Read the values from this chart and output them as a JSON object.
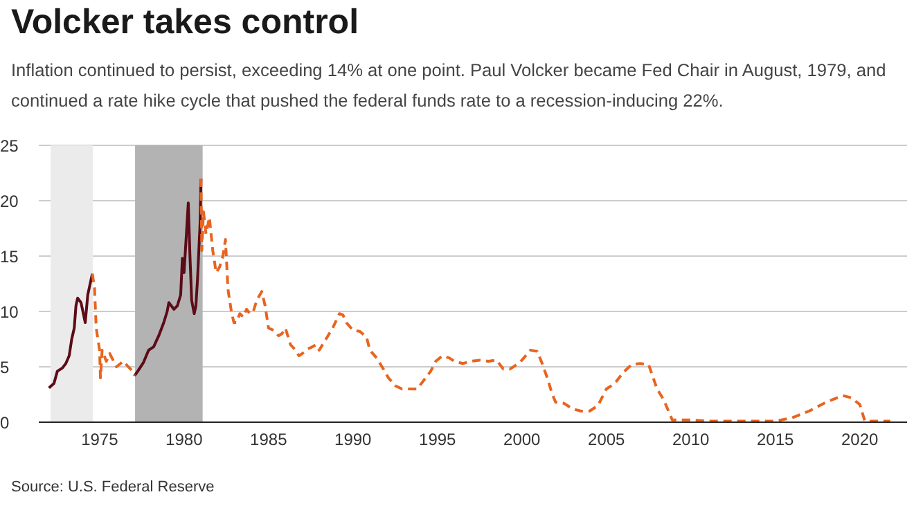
{
  "chart_data": {
    "type": "line",
    "title": "Volcker takes control",
    "subtitle": "Inflation continued to persist, exceeding 14% at one point. Paul Volcker became Fed Chair in August, 1979, and continued a rate hike cycle that pushed the federal funds rate to a recession-inducing 22%.",
    "annotations": [
      "Source: U.S. Federal Reserve"
    ],
    "series": [
      {
        "color": "#5c0b17",
        "line_style": "solid",
        "x": [
          1972.0,
          1972.3,
          1972.5,
          1972.8,
          1973.0,
          1973.2,
          1973.35,
          1973.5,
          1973.6,
          1973.7,
          1973.9,
          1974.15,
          1974.3,
          1974.57,
          1976.0,
          1977.07,
          1977.3,
          1977.6,
          1977.9,
          1978.2,
          1978.5,
          1978.8,
          1979.0,
          1979.1,
          1979.4,
          1979.6,
          1979.8,
          1979.9,
          1980.0,
          1980.25,
          1980.35,
          1980.45,
          1980.6,
          1980.7,
          1980.8,
          1980.95,
          1981.0
        ],
        "values": [
          3.1,
          3.5,
          4.6,
          4.9,
          5.3,
          6.0,
          7.5,
          8.5,
          10.5,
          11.2,
          10.8,
          9.0,
          11.5,
          13.4,
          null,
          4.2,
          4.7,
          5.4,
          6.5,
          6.8,
          7.8,
          9.0,
          10.0,
          10.8,
          10.2,
          10.5,
          11.5,
          14.8,
          13.5,
          19.8,
          15.0,
          11.0,
          9.8,
          10.5,
          13.0,
          18.0,
          22.0
        ]
      },
      {
        "color": "#e8641f",
        "line_style": "dashed",
        "x": [
          1974.57,
          1974.7,
          1974.8,
          1975.0,
          1975.05,
          1975.15,
          1975.4,
          1975.6,
          1976.0,
          1976.4,
          1976.7,
          1976.9,
          1977.07,
          1979.0,
          1981.0,
          1981.05,
          1981.15,
          1981.3,
          1981.5,
          1981.7,
          1981.9,
          1982.1,
          1982.3,
          1982.45,
          1982.6,
          1982.8,
          1982.95,
          1983.1,
          1983.3,
          1983.5,
          1983.7,
          1983.9,
          1984.1,
          1984.3,
          1984.6,
          1984.8,
          1985.0,
          1985.3,
          1985.6,
          1985.8,
          1986.0,
          1986.3,
          1986.6,
          1986.8,
          1987.0,
          1987.3,
          1987.6,
          1987.8,
          1988.0,
          1988.4,
          1988.8,
          1989.2,
          1989.4,
          1989.6,
          1990.0,
          1990.4,
          1990.8,
          1991.0,
          1991.4,
          1991.8,
          1992.1,
          1992.5,
          1992.9,
          1993.3,
          1993.8,
          1994.2,
          1994.6,
          1994.9,
          1995.3,
          1995.7,
          1996.0,
          1996.5,
          1997.0,
          1997.5,
          1998.0,
          1998.5,
          1998.9,
          1999.3,
          1999.7,
          2000.0,
          2000.5,
          2000.9,
          2001.2,
          2001.5,
          2001.8,
          2002.0,
          2002.5,
          2003.0,
          2003.5,
          2004.0,
          2004.5,
          2005.0,
          2005.5,
          2006.0,
          2006.5,
          2007.0,
          2007.5,
          2008.0,
          2008.4,
          2008.9,
          2009.5,
          2010.0,
          2011.0,
          2012.0,
          2013.0,
          2014.0,
          2015.0,
          2016.0,
          2017.0,
          2018.0,
          2019.0,
          2019.5,
          2020.0,
          2020.3,
          2021.0,
          2021.8
        ],
        "values": [
          13.4,
          12.1,
          8.5,
          6.5,
          4.0,
          6.5,
          5.5,
          6.2,
          5.0,
          5.5,
          5.0,
          4.7,
          4.2,
          null,
          22.0,
          15.5,
          19.0,
          17.0,
          18.5,
          15.5,
          13.5,
          14.0,
          15.0,
          16.5,
          12.0,
          10.0,
          9.0,
          9.0,
          9.8,
          9.5,
          10.2,
          9.8,
          10.0,
          11.0,
          11.8,
          10.5,
          8.5,
          8.3,
          7.8,
          8.0,
          8.5,
          7.0,
          6.5,
          6.0,
          6.2,
          6.6,
          6.8,
          7.0,
          6.5,
          7.5,
          8.5,
          9.8,
          9.7,
          9.0,
          8.3,
          8.2,
          7.7,
          6.5,
          5.8,
          4.8,
          4.0,
          3.3,
          3.0,
          3.0,
          3.0,
          3.8,
          4.6,
          5.5,
          6.0,
          5.8,
          5.5,
          5.3,
          5.5,
          5.6,
          5.5,
          5.6,
          4.8,
          4.8,
          5.2,
          5.6,
          6.5,
          6.4,
          5.3,
          4.0,
          2.5,
          1.8,
          1.7,
          1.2,
          1.0,
          1.0,
          1.5,
          3.0,
          3.5,
          4.5,
          5.2,
          5.3,
          5.2,
          3.0,
          2.0,
          0.2,
          0.2,
          0.2,
          0.1,
          0.1,
          0.1,
          0.1,
          0.1,
          0.4,
          1.0,
          1.8,
          2.4,
          2.2,
          1.6,
          0.1,
          0.1,
          0.1
        ]
      }
    ],
    "bands": [
      {
        "axis": "x",
        "from": 1972.1,
        "to": 1974.6,
        "color": "#ebebeb"
      },
      {
        "axis": "x",
        "from": 1977.1,
        "to": 1981.1,
        "color": "#b3b3b3"
      }
    ],
    "xlim": [
      1971.4,
      2022.8
    ],
    "xticks": [
      1975,
      1980,
      1985,
      1990,
      1995,
      2000,
      2005,
      2010,
      2015,
      2020
    ],
    "ylim": [
      0,
      25
    ],
    "yticks": [
      0,
      5,
      10,
      15,
      20,
      25
    ],
    "grid": "y",
    "marker": "none"
  }
}
